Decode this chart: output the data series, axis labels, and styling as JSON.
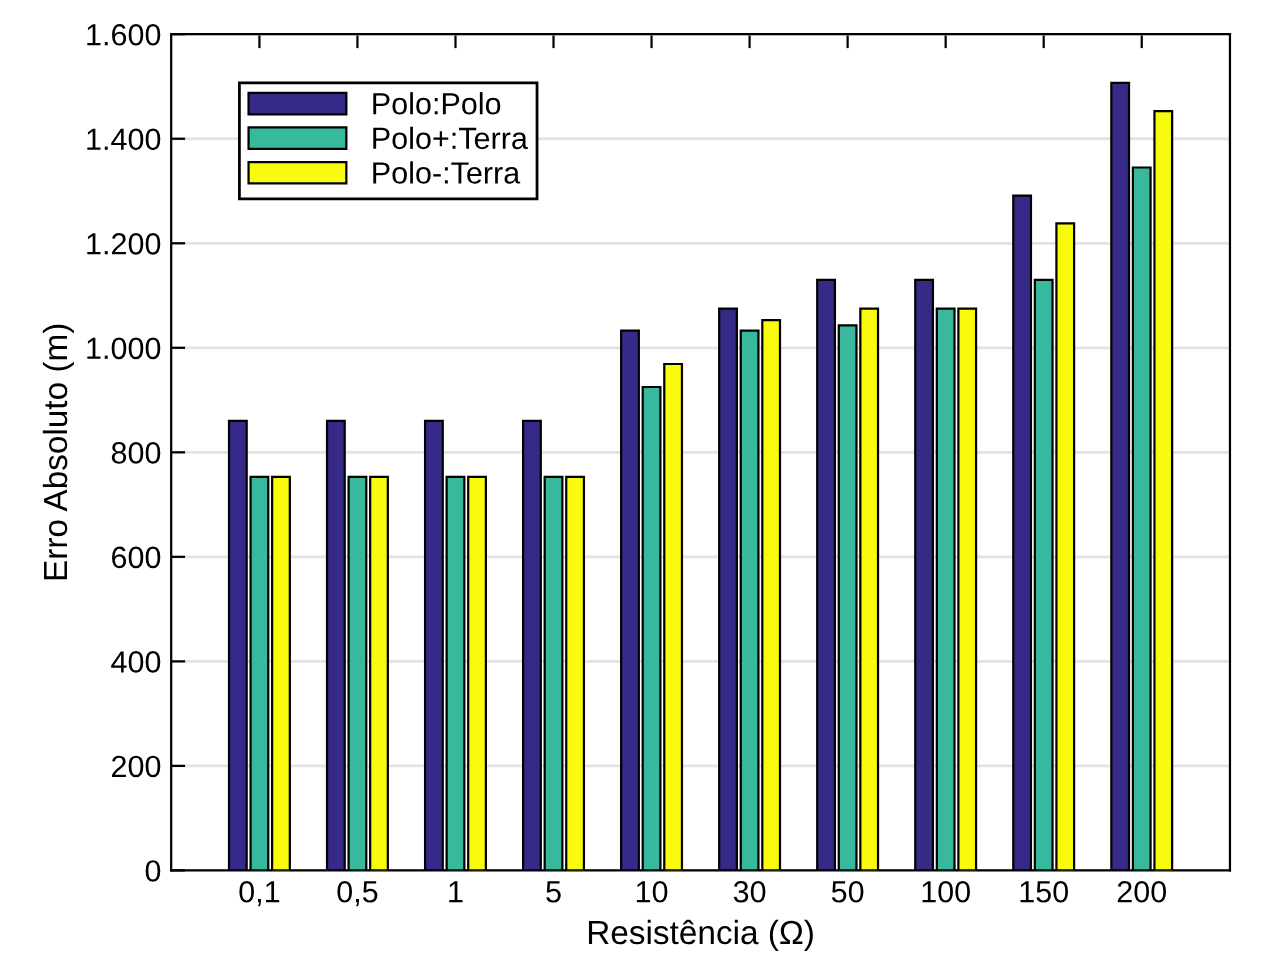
{
  "chart_data": {
    "type": "bar",
    "xlabel": "Resistência (Ω)",
    "ylabel": "Erro Absoluto (m)",
    "categories": [
      "0,1",
      "0,5",
      "1",
      "5",
      "10",
      "30",
      "50",
      "100",
      "150",
      "200"
    ],
    "series": [
      {
        "name": "Polo:Polo",
        "color": "#352a87",
        "values": [
          860,
          860,
          860,
          860,
          1033,
          1075,
          1130,
          1130,
          1291,
          1507
        ]
      },
      {
        "name": "Polo+:Terra",
        "color": "#38b99e",
        "values": [
          753,
          753,
          753,
          753,
          925,
          1033,
          1043,
          1075,
          1130,
          1345
        ]
      },
      {
        "name": "Polo-:Terra",
        "color": "#f9fb0e",
        "values": [
          753,
          753,
          753,
          753,
          969,
          1053,
          1075,
          1075,
          1238,
          1453
        ]
      }
    ],
    "ylim": [
      0,
      1600
    ],
    "yticks": [
      0,
      200,
      400,
      600,
      800,
      {
        "value": 1000,
        "label": "1.000"
      },
      {
        "value": 1200,
        "label": "1.200"
      },
      {
        "value": 1400,
        "label": "1.400"
      },
      {
        "value": 1600,
        "label": "1.600"
      }
    ],
    "grid": "y",
    "legend": "top left"
  }
}
